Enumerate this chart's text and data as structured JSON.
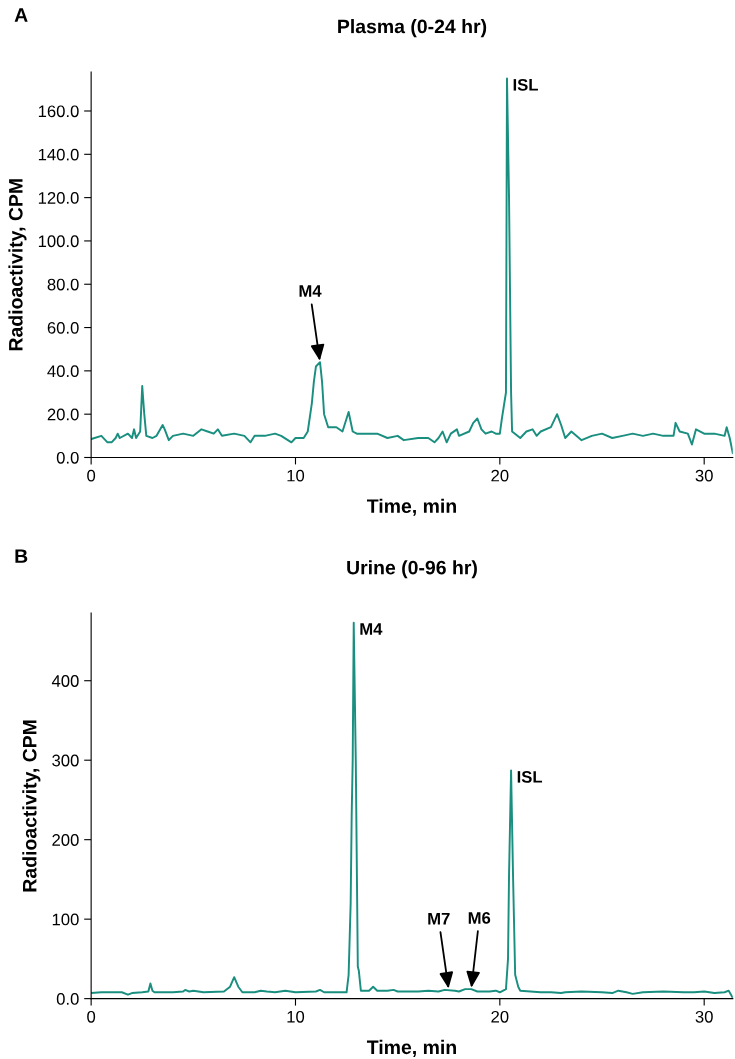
{
  "chart_data": [
    {
      "type": "line",
      "title": "Plasma (0-24 hr)",
      "xlabel": "Time, min",
      "ylabel": "Radioactivity, CPM",
      "xlim": [
        0,
        31.4
      ],
      "xticks": [
        0,
        10,
        20,
        30
      ],
      "ylim": [
        0,
        178
      ],
      "yticks": [
        {
          "value": 0,
          "label": "0.0"
        },
        {
          "value": 20,
          "label": "20.0"
        },
        {
          "value": 40,
          "label": "40.0"
        },
        {
          "value": 60,
          "label": "60.0"
        },
        {
          "value": 80,
          "label": "80.0"
        },
        {
          "value": 100,
          "label": "100.0"
        },
        {
          "value": 120,
          "label": "120.0"
        },
        {
          "value": 140,
          "label": "140.0"
        },
        {
          "value": 160,
          "label": "160.0"
        }
      ],
      "grid": false,
      "legend": false,
      "marker": "none",
      "line_style": "solid",
      "annotations": [
        "A",
        {
          "text": "M4",
          "x": 11.2,
          "y": 44
        },
        {
          "text": "ISL",
          "x": 20.35,
          "y": 175
        }
      ],
      "series": [
        {
          "color": "#1a8f80",
          "x": [
            0,
            0.5,
            0.8,
            1.0,
            1.2,
            1.3,
            1.4,
            1.8,
            2.0,
            2.1,
            2.2,
            2.4,
            2.5,
            2.6,
            2.7,
            3.0,
            3.2,
            3.5,
            3.6,
            3.8,
            4.0,
            4.5,
            5.0,
            5.4,
            5.7,
            6.0,
            6.2,
            6.4,
            7.0,
            7.5,
            7.8,
            8.0,
            8.5,
            9.0,
            9.3,
            9.8,
            10.0,
            10.4,
            10.6,
            10.8,
            10.9,
            11.0,
            11.2,
            11.3,
            11.4,
            11.6,
            12.0,
            12.3,
            12.5,
            12.6,
            12.8,
            13.0,
            14.0,
            14.5,
            15.0,
            15.3,
            16.0,
            16.5,
            16.8,
            17.0,
            17.2,
            17.4,
            17.6,
            17.9,
            18.0,
            18.5,
            18.7,
            18.9,
            19.1,
            19.3,
            19.6,
            19.8,
            20.0,
            20.1,
            20.3,
            20.35,
            20.45,
            20.55,
            20.6,
            21.0,
            21.3,
            21.6,
            21.8,
            22.0,
            22.5,
            22.8,
            23.0,
            23.2,
            23.5,
            24.0,
            24.5,
            25.0,
            25.5,
            26.0,
            26.5,
            27.0,
            27.5,
            28.0,
            28.5,
            28.6,
            28.8,
            29.2,
            29.4,
            29.6,
            30.0,
            30.5,
            31.0,
            31.1,
            31.25,
            31.4
          ],
          "values": [
            8.5,
            10,
            7,
            7,
            9,
            11,
            9,
            11,
            9,
            13,
            9,
            12,
            33,
            20,
            10,
            9,
            10,
            15,
            13,
            8,
            10,
            11,
            10,
            13,
            12,
            11,
            13,
            10,
            11,
            10,
            7,
            10,
            10,
            11,
            10,
            7,
            9,
            9,
            12,
            25,
            35,
            42,
            44,
            35,
            20,
            14,
            14,
            12,
            18,
            21,
            12,
            11,
            11,
            9,
            10,
            8,
            9,
            9,
            7,
            9,
            12,
            7,
            11,
            13,
            10,
            12,
            16,
            18,
            13,
            11,
            12,
            11,
            11,
            18,
            30,
            175,
            120,
            30,
            12,
            9,
            12,
            13,
            10,
            12,
            14,
            20,
            15,
            9,
            12,
            8,
            10,
            11,
            9,
            10,
            11,
            10,
            11,
            10,
            10,
            16,
            12,
            11,
            6,
            13,
            11,
            11,
            10,
            14,
            9,
            2
          ]
        }
      ]
    },
    {
      "type": "line",
      "title": "Urine (0-96 hr)",
      "xlabel": "Time, min",
      "ylabel": "Radioactivity, CPM",
      "xlim": [
        0,
        31.4
      ],
      "xticks": [
        0,
        10,
        20,
        30
      ],
      "ylim": [
        0,
        485
      ],
      "yticks": [
        {
          "value": 0,
          "label": "0.0"
        },
        100,
        200,
        300,
        400
      ],
      "grid": false,
      "legend": false,
      "marker": "none",
      "line_style": "solid",
      "annotations": [
        "B",
        {
          "text": "M4",
          "x": 12.85,
          "y": 473
        },
        {
          "text": "M7",
          "x": 17.5,
          "y": 11
        },
        {
          "text": "M6",
          "x": 18.6,
          "y": 12
        },
        {
          "text": "ISL",
          "x": 20.55,
          "y": 287
        }
      ],
      "series": [
        {
          "color": "#1a8f80",
          "x": [
            0,
            0.5,
            1.0,
            1.5,
            1.8,
            2.0,
            2.5,
            2.8,
            2.9,
            3.0,
            3.1,
            4.0,
            4.5,
            4.6,
            4.8,
            5.0,
            5.5,
            6.5,
            6.8,
            7.0,
            7.2,
            7.4,
            8.0,
            8.3,
            8.6,
            9.0,
            9.5,
            10.0,
            11.0,
            11.2,
            11.4,
            12.0,
            12.5,
            12.6,
            12.7,
            12.75,
            12.8,
            12.85,
            12.95,
            13.05,
            13.1,
            13.2,
            13.6,
            13.8,
            14.0,
            14.5,
            14.8,
            15.0,
            16.0,
            16.5,
            17.0,
            17.3,
            17.8,
            18.0,
            18.3,
            18.6,
            18.9,
            19.5,
            19.8,
            20.0,
            20.3,
            20.4,
            20.45,
            20.55,
            20.65,
            20.75,
            20.9,
            21.0,
            21.5,
            22.0,
            22.5,
            23.0,
            23.2,
            24.0,
            25.0,
            25.5,
            25.8,
            26.2,
            26.5,
            27.0,
            28.0,
            29.0,
            29.5,
            30.0,
            30.5,
            31.0,
            31.2,
            31.4
          ],
          "values": [
            7,
            8,
            8,
            8,
            5,
            7,
            8,
            9,
            19,
            10,
            8,
            8,
            9,
            11,
            9,
            10,
            8,
            9,
            15,
            27,
            15,
            8,
            8,
            10,
            9,
            8,
            10,
            8,
            9,
            11,
            8,
            8,
            8,
            30,
            120,
            230,
            300,
            473,
            300,
            40,
            35,
            10,
            10,
            15,
            10,
            10,
            11,
            9,
            9,
            10,
            9,
            11,
            10,
            9,
            12,
            12,
            9,
            9,
            10,
            8,
            12,
            50,
            155,
            287,
            150,
            30,
            15,
            10,
            9,
            8,
            8,
            7,
            8,
            9,
            8,
            7,
            10,
            8,
            6,
            8,
            9,
            8,
            8,
            9,
            7,
            8,
            10,
            1
          ]
        }
      ]
    }
  ]
}
